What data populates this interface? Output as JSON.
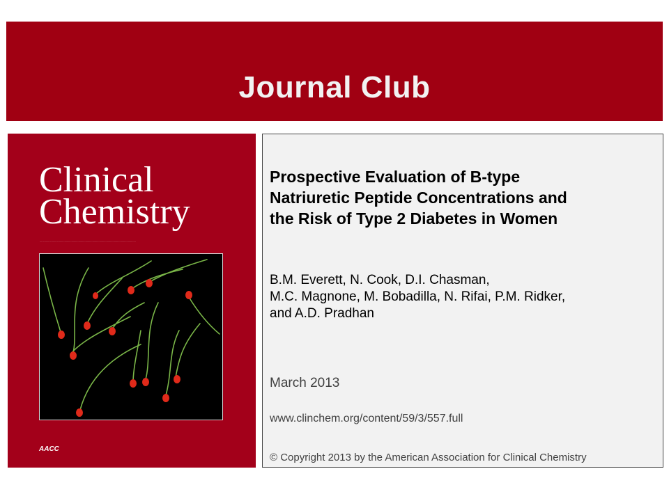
{
  "banner": {
    "title": "Journal Club"
  },
  "cover": {
    "journal_title_line1": "Clinical",
    "journal_title_line2": "Chemistry",
    "publisher_logo_text": "AACC"
  },
  "article": {
    "title_lines": [
      "Prospective Evaluation of B-type",
      "Natriuretic Peptide Concentrations and",
      "the Risk of Type 2 Diabetes in Women"
    ],
    "author_lines": [
      "B.M. Everett, N. Cook, D.I. Chasman,",
      "M.C. Magnone, M. Bobadilla, N. Rifai, P.M. Ridker,",
      "and A.D. Pradhan"
    ],
    "date": "March 2013",
    "url": "www.clinchem.org/content/59/3/557.full",
    "copyright": "© Copyright 2013 by the American Association for Clinical Chemistry"
  },
  "colors": {
    "banner_red": "#a00012",
    "cover_red": "#a3001a",
    "panel_gray": "#f2f2f2",
    "cell_head_red": "#e02a1a",
    "tail_green": "#7ab648"
  }
}
